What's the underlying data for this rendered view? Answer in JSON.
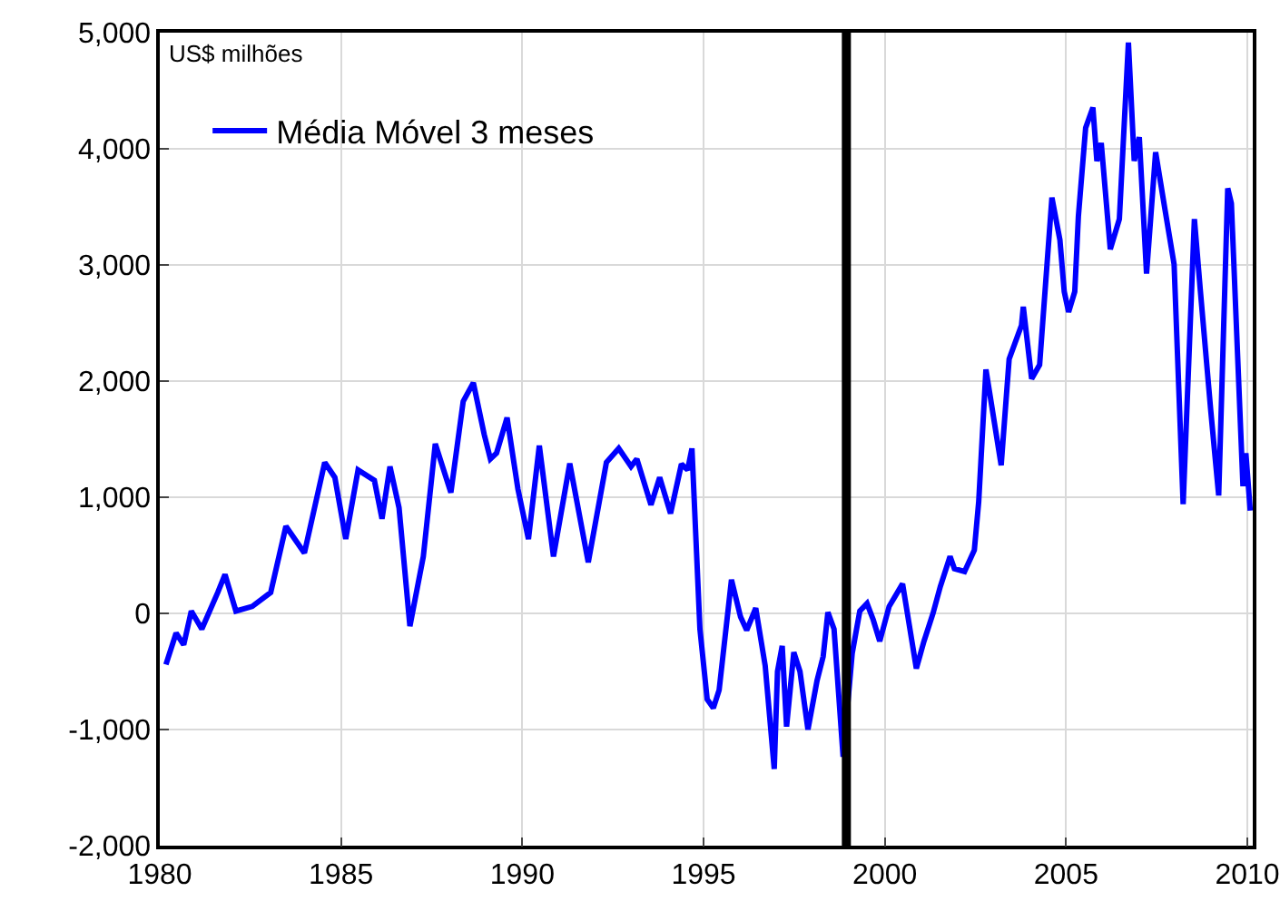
{
  "chart_data": {
    "type": "line",
    "annotations": [
      "US$ milhões"
    ],
    "xlim": [
      1980,
      2010.15
    ],
    "xticks": [
      1980,
      1985,
      1990,
      1995,
      2000,
      2005,
      2010
    ],
    "ylim": [
      -2000,
      5000
    ],
    "yticks": [
      {
        "value": -2000,
        "label": "-2,000"
      },
      {
        "value": -1000,
        "label": "-1,000"
      },
      0,
      {
        "value": 1000,
        "label": "1,000"
      },
      {
        "value": 2000,
        "label": "2,000"
      },
      {
        "value": 3000,
        "label": "3,000"
      },
      {
        "value": 4000,
        "label": "4,000"
      },
      {
        "value": 5000,
        "label": "5,000"
      }
    ],
    "grid": true,
    "legend": "top left",
    "line_style": "solid",
    "ref_lines": [
      {
        "axis": "x",
        "value": 1998.94,
        "color": "#000000"
      }
    ],
    "series": [
      {
        "name": "Média Móvel 3 meses",
        "color": "#0000ff",
        "x": [
          1980.17,
          1980.45,
          1980.66,
          1980.87,
          1981.16,
          1981.6,
          1981.8,
          1982.1,
          1982.55,
          1983.06,
          1983.48,
          1983.99,
          1984.55,
          1984.83,
          1985.13,
          1985.47,
          1985.92,
          1986.13,
          1986.35,
          1986.6,
          1986.9,
          1987.27,
          1987.6,
          1988.03,
          1988.37,
          1988.65,
          1988.95,
          1989.12,
          1989.29,
          1989.58,
          1989.88,
          1990.17,
          1990.47,
          1990.86,
          1991.31,
          1991.82,
          1992.32,
          1992.66,
          1993.0,
          1993.16,
          1993.55,
          1993.79,
          1994.09,
          1994.39,
          1994.56,
          1994.68,
          1994.9,
          1995.1,
          1995.27,
          1995.43,
          1995.77,
          1996.02,
          1996.19,
          1996.44,
          1996.7,
          1996.95,
          1997.04,
          1997.17,
          1997.29,
          1997.49,
          1997.66,
          1997.88,
          1998.13,
          1998.3,
          1998.43,
          1998.6,
          1998.85,
          1999.1,
          1999.31,
          1999.51,
          1999.68,
          1999.86,
          2000.12,
          2000.49,
          2000.87,
          2001.08,
          2001.33,
          2001.53,
          2001.8,
          2001.92,
          2002.2,
          2002.47,
          2002.59,
          2002.79,
          2003.21,
          2003.43,
          2003.77,
          2003.82,
          2004.05,
          2004.27,
          2004.61,
          2004.83,
          2004.95,
          2005.07,
          2005.24,
          2005.34,
          2005.54,
          2005.74,
          2005.85,
          2005.97,
          2006.22,
          2006.47,
          2006.72,
          2006.88,
          2007.02,
          2007.22,
          2007.47,
          2007.73,
          2007.98,
          2008.23,
          2008.54,
          2008.7,
          2008.99,
          2009.21,
          2009.46,
          2009.56,
          2009.88,
          2009.96,
          2010.08
        ],
        "values": [
          -440,
          -170,
          -270,
          20,
          -135,
          180,
          335,
          20,
          60,
          180,
          750,
          520,
          1300,
          1170,
          640,
          1235,
          1145,
          815,
          1265,
          910,
          -110,
          490,
          1460,
          1040,
          1825,
          1985,
          1540,
          1330,
          1380,
          1685,
          1070,
          640,
          1445,
          490,
          1290,
          440,
          1300,
          1420,
          1265,
          1330,
          935,
          1170,
          860,
          1285,
          1235,
          1420,
          -135,
          -740,
          -815,
          -660,
          290,
          -30,
          -145,
          45,
          -450,
          -1340,
          -500,
          -280,
          -975,
          -335,
          -500,
          -1000,
          -580,
          -370,
          10,
          -135,
          -1235,
          -345,
          20,
          85,
          -55,
          -240,
          60,
          255,
          -475,
          -240,
          0,
          230,
          490,
          385,
          360,
          545,
          960,
          2100,
          1275,
          2190,
          2480,
          2640,
          2020,
          2140,
          3580,
          3215,
          2770,
          2595,
          2770,
          3420,
          4180,
          4355,
          3895,
          4050,
          3135,
          3395,
          4915,
          3895,
          4100,
          2925,
          3970,
          3475,
          3005,
          940,
          3395,
          2795,
          1750,
          1015,
          3660,
          3530,
          1095,
          1380,
          885
        ]
      }
    ]
  }
}
